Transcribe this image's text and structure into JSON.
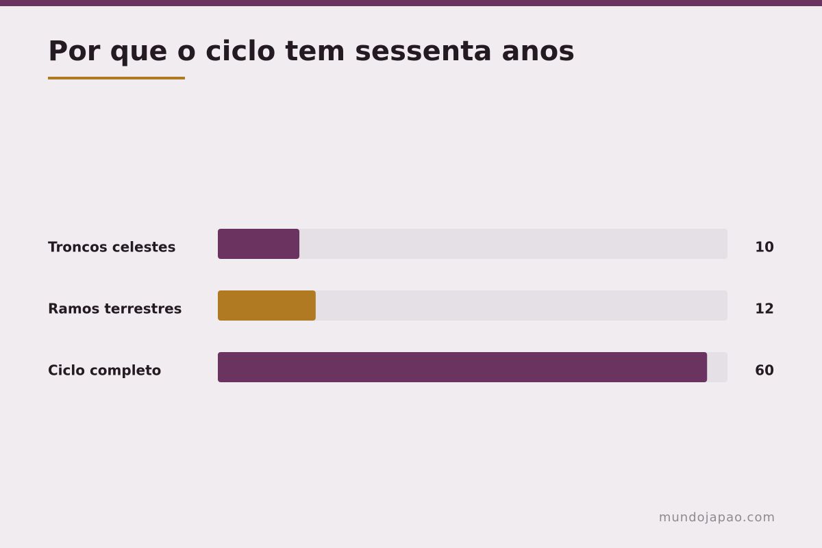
{
  "chart_data": {
    "type": "bar",
    "orientation": "horizontal",
    "title": "Por que o ciclo tem sessenta anos",
    "categories": [
      "Troncos celestes",
      "Ramos terrestres",
      "Ciclo completo"
    ],
    "values": [
      10,
      12,
      60
    ],
    "colors": [
      "#6b3460",
      "#b07a22",
      "#6b3460"
    ],
    "xlim": [
      0,
      62.5
    ],
    "footer": "mundojapao.com"
  }
}
